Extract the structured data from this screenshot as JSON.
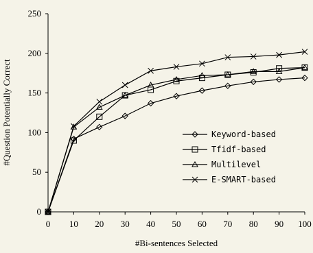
{
  "chart_data": {
    "type": "line",
    "x": [
      0,
      10,
      20,
      30,
      40,
      50,
      60,
      70,
      80,
      90,
      100
    ],
    "xlabel": "#Bi-sentences Selected",
    "ylabel": "#Question Potentially Correct",
    "xlim": [
      0,
      100
    ],
    "ylim": [
      0,
      250
    ],
    "yticks": [
      0,
      50,
      100,
      150,
      200,
      250
    ],
    "xticks": [
      0,
      10,
      20,
      30,
      40,
      50,
      60,
      70,
      80,
      90,
      100
    ],
    "grid": false,
    "legend_placement": "center-right",
    "series": [
      {
        "name": "Keyword-based",
        "marker": "diamond",
        "values": [
          0,
          92,
          107,
          121,
          137,
          146,
          153,
          159,
          164,
          167,
          169
        ]
      },
      {
        "name": "Tfidf-based",
        "marker": "square",
        "values": [
          0,
          90,
          120,
          147,
          154,
          165,
          169,
          173,
          176,
          181,
          182
        ]
      },
      {
        "name": "Multilevel",
        "marker": "triangle",
        "values": [
          0,
          107,
          132,
          147,
          160,
          167,
          172,
          173,
          177,
          177,
          182
        ]
      },
      {
        "name": "E-SMART-based",
        "marker": "x",
        "values": [
          0,
          108,
          139,
          160,
          178,
          183,
          187,
          195,
          196,
          198,
          202
        ]
      }
    ]
  }
}
